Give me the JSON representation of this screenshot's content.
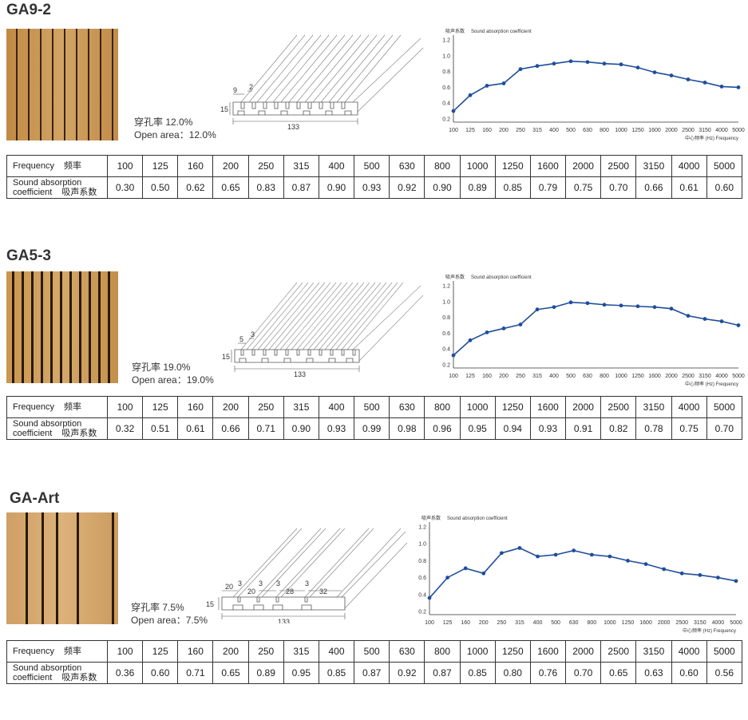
{
  "table_labels": {
    "frequency_en": "Frequency",
    "frequency_cn": "频率",
    "sac_en_1": "Sound absorption",
    "sac_en_2": "coefficient",
    "sac_cn": "吸声系数"
  },
  "chart_labels": {
    "ylabel_cn": "吸声系数",
    "ylabel_en": "Sound absorption coefficient",
    "xlabel": "中心频率 (Hz) Frequency"
  },
  "colors": {
    "line": "#1f4e9c",
    "wood": "#c99a55",
    "slot": "#2a1d10"
  },
  "products": [
    {
      "title": "GA9-2",
      "open_area_cn": "穿孔率 12.0%",
      "open_area_en": "Open area：12.0%",
      "dims": {
        "a": "9",
        "b": "2",
        "h": "15",
        "w": "133"
      },
      "frequencies": [
        "100",
        "125",
        "160",
        "200",
        "250",
        "315",
        "400",
        "500",
        "630",
        "800",
        "1000",
        "1250",
        "1600",
        "2000",
        "2500",
        "3150",
        "4000",
        "5000"
      ],
      "coefficients": [
        "0.30",
        "0.50",
        "0.62",
        "0.65",
        "0.83",
        "0.87",
        "0.90",
        "0.93",
        "0.92",
        "0.90",
        "0.89",
        "0.85",
        "0.79",
        "0.75",
        "0.70",
        "0.66",
        "0.61",
        "0.60"
      ],
      "chart_data": {
        "type": "line",
        "x": [
          "100",
          "125",
          "160",
          "200",
          "250",
          "315",
          "400",
          "500",
          "630",
          "800",
          "1000",
          "1250",
          "1600",
          "2000",
          "2500",
          "3150",
          "4000",
          "5000"
        ],
        "y": [
          0.3,
          0.5,
          0.62,
          0.65,
          0.83,
          0.87,
          0.9,
          0.93,
          0.92,
          0.9,
          0.89,
          0.85,
          0.79,
          0.75,
          0.7,
          0.66,
          0.61,
          0.6
        ],
        "yticks": [
          "0.2",
          "0.4",
          "0.6",
          "0.8",
          "1.0",
          "1.2"
        ],
        "ylim": [
          0.2,
          1.2
        ],
        "xticks": [
          "100",
          "125",
          "160",
          "200",
          "250",
          "315",
          "400",
          "500",
          "630",
          "800",
          "1000",
          "1250",
          "1600",
          "2000",
          "2500",
          "3150",
          "4000",
          "5000"
        ]
      }
    },
    {
      "title": "GA5-3",
      "open_area_cn": "穿孔率 19.0%",
      "open_area_en": "Open area：19.0%",
      "dims": {
        "a": "5",
        "b": "3",
        "h": "15",
        "w": "133"
      },
      "frequencies": [
        "100",
        "125",
        "160",
        "200",
        "250",
        "315",
        "400",
        "500",
        "630",
        "800",
        "1000",
        "1250",
        "1600",
        "2000",
        "2500",
        "3150",
        "4000",
        "5000"
      ],
      "coefficients": [
        "0.32",
        "0.51",
        "0.61",
        "0.66",
        "0.71",
        "0.90",
        "0.93",
        "0.99",
        "0.98",
        "0.96",
        "0.95",
        "0.94",
        "0.93",
        "0.91",
        "0.82",
        "0.78",
        "0.75",
        "0.70"
      ],
      "chart_data": {
        "type": "line",
        "x": [
          "100",
          "125",
          "160",
          "200",
          "250",
          "315",
          "400",
          "500",
          "630",
          "800",
          "1000",
          "1250",
          "1600",
          "2000",
          "2500",
          "3150",
          "4000",
          "5000"
        ],
        "y": [
          0.32,
          0.51,
          0.61,
          0.66,
          0.71,
          0.9,
          0.93,
          0.99,
          0.98,
          0.96,
          0.95,
          0.94,
          0.93,
          0.91,
          0.82,
          0.78,
          0.75,
          0.7
        ],
        "yticks": [
          "0.2",
          "0.4",
          "0.6",
          "0.8",
          "1.0",
          "1.2"
        ],
        "ylim": [
          0.2,
          1.2
        ],
        "xticks": [
          "100",
          "125",
          "160",
          "200",
          "250",
          "315",
          "400",
          "500",
          "630",
          "800",
          "1000",
          "1250",
          "1600",
          "2000",
          "2500",
          "3150",
          "4000",
          "5000"
        ]
      }
    },
    {
      "title": "GA-Art",
      "open_area_cn": "穿孔率 7.5%",
      "open_area_en": "Open area：7.5%",
      "dims": {
        "d1": "20",
        "d2": "3",
        "d3": "20",
        "d4": "3",
        "d5": "3",
        "d6": "28",
        "d7": "3",
        "d8": "32",
        "h": "15",
        "w": "133"
      },
      "frequencies": [
        "100",
        "125",
        "160",
        "200",
        "250",
        "315",
        "400",
        "500",
        "630",
        "800",
        "1000",
        "1250",
        "1600",
        "2000",
        "2500",
        "3150",
        "4000",
        "5000"
      ],
      "coefficients": [
        "0.36",
        "0.60",
        "0.71",
        "0.65",
        "0.89",
        "0.95",
        "0.85",
        "0.87",
        "0.92",
        "0.87",
        "0.85",
        "0.80",
        "0.76",
        "0.70",
        "0.65",
        "0.63",
        "0.60",
        "0.56"
      ],
      "chart_data": {
        "type": "line",
        "x": [
          "100",
          "125",
          "160",
          "200",
          "250",
          "315",
          "400",
          "500",
          "630",
          "800",
          "1000",
          "1250",
          "1600",
          "2000",
          "2500",
          "3150",
          "4000",
          "5000"
        ],
        "y": [
          0.36,
          0.6,
          0.71,
          0.65,
          0.89,
          0.95,
          0.85,
          0.87,
          0.92,
          0.87,
          0.85,
          0.8,
          0.76,
          0.7,
          0.65,
          0.63,
          0.6,
          0.56
        ],
        "yticks": [
          "0.2",
          "0.4",
          "0.6",
          "0.8",
          "1.0",
          "1.2"
        ],
        "ylim": [
          0.2,
          1.2
        ],
        "xticks": [
          "100",
          "125",
          "160",
          "200",
          "250",
          "315",
          "400",
          "500",
          "630",
          "800",
          "1000",
          "1250",
          "1600",
          "2000",
          "2500",
          "3150",
          "4000",
          "5000"
        ]
      }
    }
  ]
}
